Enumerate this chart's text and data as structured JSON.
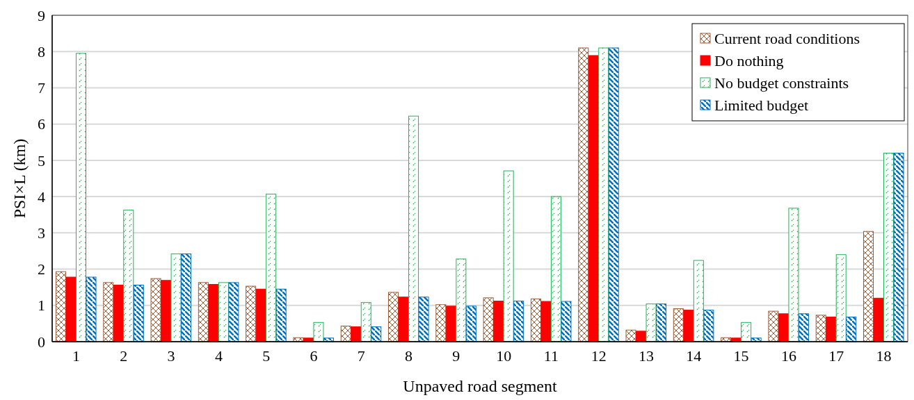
{
  "chart_data": {
    "type": "bar",
    "xlabel": "Unpaved road segment",
    "ylabel": "PSI×L (km)",
    "categories": [
      "1",
      "2",
      "3",
      "4",
      "5",
      "6",
      "7",
      "8",
      "9",
      "10",
      "11",
      "12",
      "13",
      "14",
      "15",
      "16",
      "17",
      "18"
    ],
    "series": [
      {
        "name": "Current road conditions",
        "color": "#9e5b36",
        "values": [
          1.93,
          1.63,
          1.74,
          1.63,
          1.53,
          0.11,
          0.43,
          1.36,
          1.02,
          1.21,
          1.18,
          8.1,
          0.32,
          0.91,
          0.11,
          0.84,
          0.73,
          3.04
        ]
      },
      {
        "name": "Do nothing",
        "color": "#ff0000",
        "values": [
          1.78,
          1.56,
          1.69,
          1.58,
          1.45,
          0.1,
          0.41,
          1.23,
          0.98,
          1.12,
          1.11,
          7.89,
          0.29,
          0.87,
          0.1,
          0.77,
          0.68,
          1.2
        ]
      },
      {
        "name": "No budget constraints",
        "color": "#22b35a",
        "values": [
          7.95,
          3.63,
          2.42,
          1.63,
          4.07,
          0.53,
          1.08,
          6.22,
          2.28,
          4.71,
          4.0,
          8.1,
          1.04,
          2.24,
          0.53,
          3.68,
          2.4,
          5.2
        ]
      },
      {
        "name": "Limited budget",
        "color": "#0070c0",
        "values": [
          1.78,
          1.56,
          2.42,
          1.63,
          1.45,
          0.1,
          0.41,
          1.23,
          0.98,
          1.12,
          1.11,
          8.1,
          1.04,
          0.87,
          0.1,
          0.77,
          0.68,
          5.2
        ]
      }
    ],
    "ylim": [
      0,
      9
    ],
    "yticks": [
      0,
      1,
      2,
      3,
      4,
      5,
      6,
      7,
      8,
      9
    ],
    "grid": "y",
    "legend": "top right"
  }
}
